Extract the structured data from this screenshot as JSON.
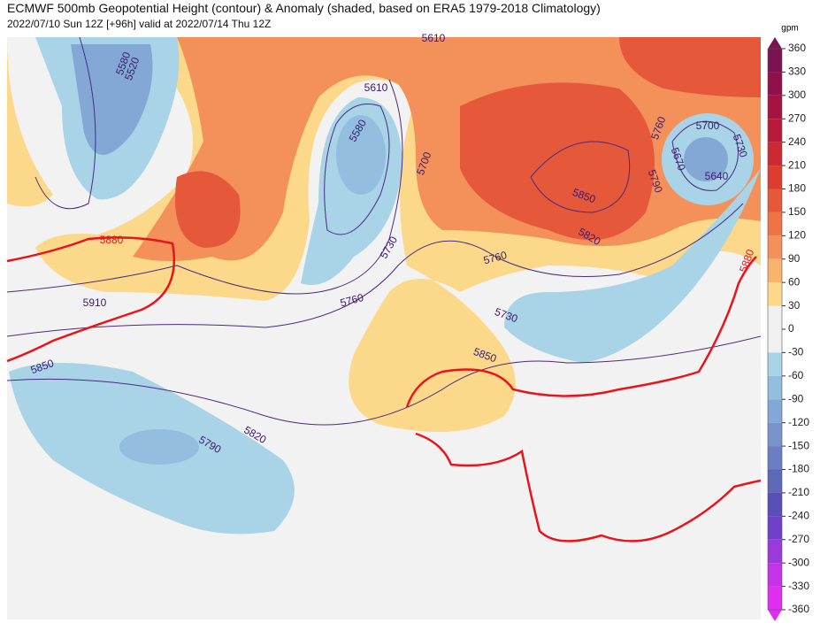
{
  "header": {
    "title": "ECMWF 500mb Geopotential Height (contour) & Anomaly (shaded, based on ERA5 1979-2018 Climatology)",
    "subtitle": "2022/07/10 Sun 12Z [+96h] valid at 2022/07/14 Thu 12Z"
  },
  "colorbar": {
    "unit": "gpm",
    "ticks": [
      360,
      330,
      300,
      270,
      240,
      210,
      180,
      150,
      120,
      90,
      60,
      30,
      0,
      -30,
      -60,
      -90,
      -120,
      -150,
      -180,
      -210,
      -240,
      -270,
      -300,
      -330,
      -360
    ],
    "colors": [
      "#7a1350",
      "#8e1249",
      "#a51343",
      "#b81b3a",
      "#cc2a33",
      "#dc3d2f",
      "#e5583a",
      "#ee7446",
      "#f4915a",
      "#f9b36c",
      "#fcd98a",
      "#f0f0f0",
      "#f0f0f0",
      "#a9d3e7",
      "#94bee0",
      "#84a8d6",
      "#7892cc",
      "#6c7ec2",
      "#5d68b8",
      "#5a4fb5",
      "#7040c9",
      "#9a3adc",
      "#c433e8",
      "#e02ef0"
    ]
  },
  "contour_labels": [
    5610,
    5580,
    5520,
    5610,
    5580,
    5700,
    5760,
    5700,
    5670,
    5730,
    5640,
    5790,
    5850,
    5820,
    5880,
    5730,
    5760,
    5760,
    5910,
    5730,
    5850,
    5850,
    5820,
    5790,
    5880
  ]
}
